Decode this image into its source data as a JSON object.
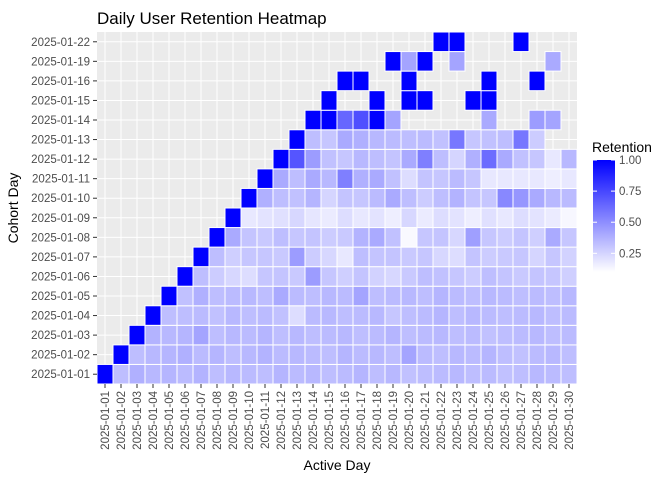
{
  "chart_data": {
    "type": "heatmap",
    "title": "Daily User Retention Heatmap",
    "xlabel": "Active Day",
    "ylabel": "Cohort Day",
    "legend": {
      "title": "Retention",
      "ticks": [
        "0.25",
        "0.50",
        "0.75",
        "1.00"
      ],
      "position": "right",
      "min": 0.1,
      "max": 1.0
    },
    "colors": {
      "high": "#0000FF",
      "low": "#FFFFFF",
      "panel": "#EBEBEB",
      "grid": "#FFFFFF",
      "tick_text": "#4D4D4D"
    },
    "grid": true,
    "x_categories": [
      "2025-01-01",
      "2025-01-02",
      "2025-01-03",
      "2025-01-04",
      "2025-01-05",
      "2025-01-06",
      "2025-01-07",
      "2025-01-08",
      "2025-01-09",
      "2025-01-10",
      "2025-01-11",
      "2025-01-12",
      "2025-01-13",
      "2025-01-14",
      "2025-01-15",
      "2025-01-16",
      "2025-01-17",
      "2025-01-18",
      "2025-01-19",
      "2025-01-20",
      "2025-01-21",
      "2025-01-22",
      "2025-01-23",
      "2025-01-24",
      "2025-01-25",
      "2025-01-26",
      "2025-01-27",
      "2025-01-28",
      "2025-01-29",
      "2025-01-30"
    ],
    "y_categories": [
      "2025-01-01",
      "2025-01-02",
      "2025-01-03",
      "2025-01-04",
      "2025-01-05",
      "2025-01-06",
      "2025-01-07",
      "2025-01-08",
      "2025-01-09",
      "2025-01-10",
      "2025-01-11",
      "2025-01-12",
      "2025-01-13",
      "2025-01-14",
      "2025-01-15",
      "2025-01-16",
      "2025-01-19",
      "2025-01-22"
    ],
    "cells": {
      "2025-01-01": [
        1.0,
        0.33,
        0.38,
        0.35,
        0.36,
        0.34,
        0.37,
        0.33,
        0.35,
        0.34,
        0.33,
        0.36,
        0.34,
        0.35,
        0.33,
        0.34,
        0.36,
        0.33,
        0.35,
        0.32,
        0.33,
        0.34,
        0.35,
        0.33,
        0.34,
        0.32,
        0.33,
        0.35,
        0.34,
        0.33
      ],
      "2025-01-02": [
        null,
        1.0,
        0.33,
        0.35,
        0.36,
        0.38,
        0.34,
        0.36,
        0.33,
        0.35,
        0.37,
        0.34,
        0.35,
        0.34,
        0.33,
        0.36,
        0.34,
        0.35,
        0.33,
        0.42,
        0.34,
        0.33,
        0.35,
        0.34,
        0.36,
        0.33,
        0.32,
        0.34,
        0.35,
        0.33
      ],
      "2025-01-03": [
        null,
        null,
        1.0,
        0.37,
        0.35,
        0.36,
        0.42,
        0.33,
        0.35,
        0.34,
        0.36,
        0.33,
        0.35,
        0.33,
        0.34,
        0.35,
        0.33,
        0.34,
        0.36,
        0.33,
        0.34,
        0.35,
        0.33,
        0.34,
        0.32,
        0.33,
        0.34,
        0.35,
        0.33,
        0.34
      ],
      "2025-01-04": [
        null,
        null,
        null,
        1.0,
        0.33,
        0.33,
        0.34,
        0.32,
        0.35,
        0.33,
        0.34,
        0.32,
        0.22,
        0.34,
        0.35,
        0.33,
        0.34,
        0.35,
        0.3,
        0.33,
        0.34,
        0.36,
        0.33,
        0.35,
        0.34,
        0.33,
        0.34,
        0.35,
        0.33,
        0.34
      ],
      "2025-01-05": [
        null,
        null,
        null,
        null,
        1.0,
        0.32,
        0.38,
        0.33,
        0.34,
        0.35,
        0.33,
        0.4,
        0.34,
        0.33,
        0.35,
        0.34,
        0.42,
        0.33,
        0.34,
        0.35,
        0.33,
        0.36,
        0.34,
        0.33,
        0.35,
        0.34,
        0.33,
        0.34,
        0.33,
        0.35
      ],
      "2025-01-06": [
        null,
        null,
        null,
        null,
        null,
        1.0,
        0.33,
        0.28,
        0.24,
        0.22,
        0.3,
        0.31,
        0.29,
        0.45,
        0.3,
        0.27,
        0.31,
        0.26,
        0.24,
        0.29,
        0.33,
        0.32,
        0.3,
        0.28,
        0.33,
        0.31,
        0.29,
        0.31,
        0.3,
        0.27
      ],
      "2025-01-07": [
        null,
        null,
        null,
        null,
        null,
        null,
        1.0,
        0.33,
        0.27,
        0.3,
        0.3,
        0.29,
        0.45,
        0.28,
        0.24,
        0.18,
        0.33,
        0.31,
        0.31,
        0.29,
        0.3,
        0.24,
        0.22,
        0.31,
        0.28,
        0.29,
        0.3,
        0.25,
        0.3,
        0.26
      ],
      "2025-01-08": [
        null,
        null,
        null,
        null,
        null,
        null,
        null,
        1.0,
        0.4,
        0.31,
        0.29,
        0.33,
        0.3,
        0.31,
        0.28,
        0.29,
        0.37,
        0.4,
        0.32,
        0.12,
        0.3,
        0.31,
        0.24,
        0.44,
        0.3,
        0.28,
        0.31,
        0.27,
        0.4,
        0.3
      ],
      "2025-01-09": [
        null,
        null,
        null,
        null,
        null,
        null,
        null,
        null,
        1.0,
        0.18,
        0.2,
        0.21,
        0.24,
        0.19,
        0.17,
        0.22,
        0.18,
        0.2,
        0.16,
        0.24,
        0.17,
        0.22,
        0.2,
        0.16,
        0.21,
        0.18,
        0.22,
        0.2,
        0.17,
        0.13
      ],
      "2025-01-10": [
        null,
        null,
        null,
        null,
        null,
        null,
        null,
        null,
        null,
        1.0,
        0.38,
        0.33,
        0.32,
        0.36,
        0.25,
        0.31,
        0.3,
        0.34,
        0.4,
        0.33,
        0.28,
        0.33,
        0.37,
        0.31,
        0.3,
        0.52,
        0.47,
        0.4,
        0.35,
        0.34
      ],
      "2025-01-11": [
        null,
        null,
        null,
        null,
        null,
        null,
        null,
        null,
        null,
        null,
        1.0,
        0.4,
        0.33,
        0.4,
        0.35,
        0.55,
        0.38,
        0.4,
        0.32,
        0.22,
        0.31,
        0.3,
        0.34,
        0.3,
        0.18,
        0.18,
        0.18,
        0.18,
        0.16,
        0.18
      ],
      "2025-01-12": [
        null,
        null,
        null,
        null,
        null,
        null,
        null,
        null,
        null,
        null,
        null,
        1.0,
        0.7,
        0.45,
        0.32,
        0.3,
        0.35,
        0.33,
        0.31,
        0.4,
        0.55,
        0.33,
        0.25,
        0.38,
        0.62,
        0.4,
        0.32,
        0.3,
        0.18,
        0.35
      ],
      "2025-01-13": [
        null,
        null,
        null,
        null,
        null,
        null,
        null,
        null,
        null,
        null,
        null,
        null,
        1.0,
        0.33,
        0.3,
        0.4,
        0.38,
        0.35,
        0.34,
        0.33,
        0.34,
        0.32,
        0.58,
        0.3,
        0.32,
        0.33,
        0.58,
        0.28,
        null,
        null
      ],
      "2025-01-14": [
        null,
        null,
        null,
        null,
        null,
        null,
        null,
        null,
        null,
        null,
        null,
        null,
        null,
        1.0,
        1.0,
        0.64,
        0.72,
        1.0,
        0.42,
        null,
        null,
        null,
        null,
        null,
        0.4,
        null,
        null,
        0.45,
        0.42,
        null
      ],
      "2025-01-15": [
        null,
        null,
        null,
        null,
        null,
        null,
        null,
        null,
        null,
        null,
        null,
        null,
        null,
        null,
        1.0,
        null,
        null,
        1.0,
        null,
        1.0,
        1.0,
        null,
        null,
        1.0,
        1.0,
        null,
        null,
        null,
        null,
        null
      ],
      "2025-01-16": [
        null,
        null,
        null,
        null,
        null,
        null,
        null,
        null,
        null,
        null,
        null,
        null,
        null,
        null,
        null,
        1.0,
        1.0,
        null,
        null,
        1.0,
        null,
        null,
        null,
        null,
        1.0,
        null,
        null,
        1.0,
        null,
        null
      ],
      "2025-01-19": [
        null,
        null,
        null,
        null,
        null,
        null,
        null,
        null,
        null,
        null,
        null,
        null,
        null,
        null,
        null,
        null,
        null,
        null,
        1.0,
        0.42,
        1.0,
        null,
        0.42,
        null,
        null,
        null,
        null,
        null,
        0.4,
        null
      ],
      "2025-01-22": [
        null,
        null,
        null,
        null,
        null,
        null,
        null,
        null,
        null,
        null,
        null,
        null,
        null,
        null,
        null,
        null,
        null,
        null,
        null,
        null,
        null,
        1.0,
        1.0,
        null,
        null,
        null,
        1.0,
        null,
        null,
        null
      ]
    }
  }
}
